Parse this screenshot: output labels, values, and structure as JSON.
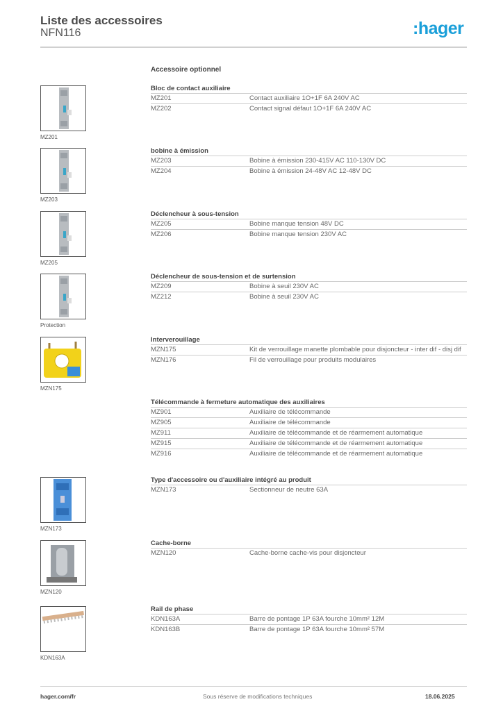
{
  "header": {
    "title": "Liste des accessoires",
    "subtitle": "NFN116",
    "logo": ":hager",
    "brand_color": "#1a9fd9"
  },
  "intro": "Accessoire optionnel",
  "sections": [
    {
      "heading": "Bloc de contact auxiliaire",
      "caption": "MZ201",
      "image": "grey-module",
      "rows": [
        {
          "ref": "MZ201",
          "desc": "Contact auxiliaire 1O+1F 6A 240V AC"
        },
        {
          "ref": "MZ202",
          "desc": "Contact signal défaut 1O+1F 6A 240V AC"
        }
      ]
    },
    {
      "heading": "bobine à émission",
      "caption": "MZ203",
      "image": "grey-module",
      "rows": [
        {
          "ref": "MZ203",
          "desc": "Bobine à émission 230-415V AC 110-130V DC"
        },
        {
          "ref": "MZ204",
          "desc": "Bobine à émission 24-48V AC 12-48V DC"
        }
      ]
    },
    {
      "heading": "Déclencheur à sous-tension",
      "caption": "MZ205",
      "image": "grey-module",
      "rows": [
        {
          "ref": "MZ205",
          "desc": "Bobine manque tension 48V DC"
        },
        {
          "ref": "MZ206",
          "desc": "Bobine manque tension 230V AC"
        }
      ]
    },
    {
      "heading": "Déclencheur de sous-tension et de surtension",
      "caption": "Protection",
      "image": "grey-module",
      "rows": [
        {
          "ref": "MZ209",
          "desc": "Bobine à seuil 230V AC"
        },
        {
          "ref": "MZ212",
          "desc": "Bobine à seuil 230V AC"
        }
      ]
    },
    {
      "heading": "Interverouillage",
      "caption": "MZN175",
      "image": "yellow-lock",
      "rows": [
        {
          "ref": "MZN175",
          "desc": "Kit de verrouillage manette plombable pour disjoncteur - inter dif - disj dif"
        },
        {
          "ref": "MZN176",
          "desc": "Fil de verrouillage pour produits modulaires"
        }
      ]
    },
    {
      "heading": "Télécommande à fermeture automatique des auxiliaires",
      "caption": "",
      "image": "",
      "rows": [
        {
          "ref": "MZ901",
          "desc": "Auxiliaire de télécommande"
        },
        {
          "ref": "MZ905",
          "desc": "Auxiliaire de télécommande"
        },
        {
          "ref": "MZ911",
          "desc": "Auxiliaire de télécommande et de réarmement automatique"
        },
        {
          "ref": "MZ915",
          "desc": "Auxiliaire de télécommande et de réarmement automatique"
        },
        {
          "ref": "MZ916",
          "desc": "Auxiliaire de télécommande et de réarmement automatique"
        }
      ]
    },
    {
      "heading": "Type d'accessoire ou d'auxiliaire intégré au produit",
      "caption": "MZN173",
      "image": "blue-module",
      "rows": [
        {
          "ref": "MZN173",
          "desc": "Sectionneur de neutre 63A"
        }
      ]
    },
    {
      "heading": "Cache-borne",
      "caption": "MZN120",
      "image": "grey-cover",
      "rows": [
        {
          "ref": "MZN120",
          "desc": "Cache-borne cache-vis pour disjoncteur"
        }
      ]
    },
    {
      "heading": "Rail de phase",
      "caption": "KDN163A",
      "image": "busbar",
      "rows": [
        {
          "ref": "KDN163A",
          "desc": "Barre de pontage 1P 63A fourche 10mm²  12M"
        },
        {
          "ref": "KDN163B",
          "desc": "Barre de pontage 1P 63A fourche 10mm²  57M"
        }
      ]
    }
  ],
  "footer": {
    "website": "hager.com/fr",
    "notice": "Sous réserve de modifications techniques",
    "date": "18.06.2025"
  }
}
